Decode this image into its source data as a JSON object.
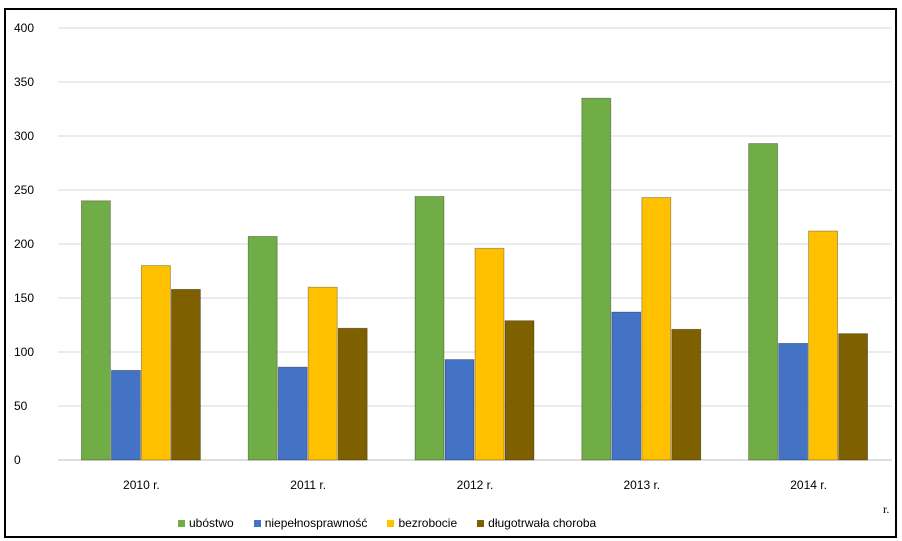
{
  "chart_data": {
    "type": "bar",
    "title": "",
    "xlabel": "",
    "ylabel": "",
    "categories": [
      "2010 r.",
      "2011 r.",
      "2012 r.",
      "2013 r.",
      "2014 r."
    ],
    "ylim": [
      0,
      400
    ],
    "yticks": [
      0,
      50,
      100,
      150,
      200,
      250,
      300,
      350,
      400
    ],
    "grid": true,
    "legend_position": "bottom",
    "series": [
      {
        "name": "ubóstwo",
        "color": "#70ad47",
        "values": [
          240,
          207,
          244,
          335,
          293
        ]
      },
      {
        "name": "niepełnosprawność",
        "color": "#4472c4",
        "values": [
          83,
          86,
          93,
          137,
          108
        ]
      },
      {
        "name": "bezrobocie",
        "color": "#ffc000",
        "values": [
          180,
          160,
          196,
          243,
          212
        ]
      },
      {
        "name": "długotrwała choroba",
        "color": "#7f6000",
        "values": [
          158,
          122,
          129,
          121,
          117
        ]
      }
    ]
  },
  "stray_text": "r."
}
